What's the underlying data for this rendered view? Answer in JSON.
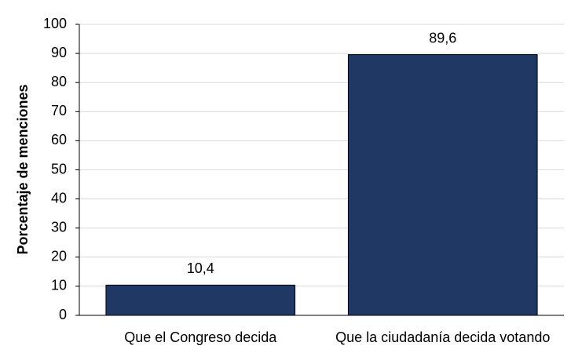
{
  "chart_data": {
    "type": "bar",
    "y_label": "Porcentaje de menciones",
    "categories": [
      "Que el Congreso decida",
      "Que la ciudadanía decida votando"
    ],
    "values": [
      10.4,
      89.6
    ],
    "value_labels": [
      "10,4",
      "89,6"
    ],
    "color": "#1f3864",
    "ylim": [
      0,
      100
    ],
    "yticks": [
      0,
      10,
      20,
      30,
      40,
      50,
      60,
      70,
      80,
      90,
      100
    ],
    "grid": true
  }
}
